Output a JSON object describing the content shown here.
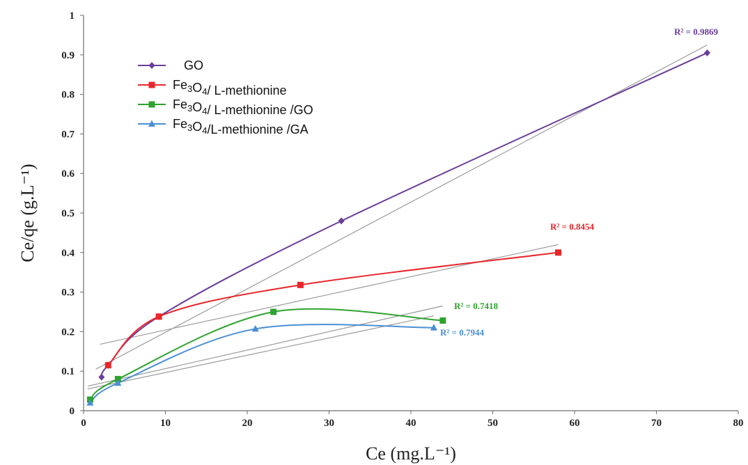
{
  "chart_data": {
    "type": "scatter",
    "xlabel": "Ce (mg.L⁻¹)",
    "ylabel": "Ce/qe (g.L⁻¹)",
    "xlim": [
      0,
      80
    ],
    "ylim": [
      0,
      1
    ],
    "x_ticks": [
      "0",
      "10",
      "20",
      "30",
      "40",
      "50",
      "60",
      "70",
      "80"
    ],
    "y_ticks": [
      "0",
      "0.1",
      "0.2",
      "0.3",
      "0.4",
      "0.5",
      "0.6",
      "0.7",
      "0.8",
      "0.9",
      "1"
    ],
    "grid": false,
    "legend_position": "top-left",
    "series": [
      {
        "name": "GO",
        "color": "#6a3d9a",
        "marker": "diamond",
        "x": [
          2.2,
          3.0,
          9.2,
          31.5,
          76.2
        ],
        "y": [
          0.085,
          0.115,
          0.238,
          0.48,
          0.905
        ],
        "r2_label": "R² = 0.9869",
        "trendline": [
          [
            1.5,
            0.105
          ],
          [
            76.2,
            0.925
          ]
        ]
      },
      {
        "name": "Fe3O4/ L-methionine",
        "color": "#e8262b",
        "marker": "square",
        "x": [
          3.0,
          9.2,
          26.5,
          58.0
        ],
        "y": [
          0.115,
          0.238,
          0.318,
          0.4
        ],
        "r2_label": "R² = 0.8454",
        "trendline": [
          [
            2.0,
            0.168
          ],
          [
            58.0,
            0.42
          ]
        ]
      },
      {
        "name": "Fe3O4/ L-methionine /GO",
        "color": "#2ea32e",
        "marker": "square",
        "x": [
          0.8,
          4.2,
          23.2,
          43.9
        ],
        "y": [
          0.028,
          0.08,
          0.25,
          0.228
        ],
        "r2_label": "R² = 0.7418",
        "trendline": [
          [
            0.5,
            0.062
          ],
          [
            43.9,
            0.265
          ]
        ]
      },
      {
        "name": "Fe3O4/L-methionine /GA",
        "color": "#4a8fd4",
        "marker": "triangle",
        "x": [
          0.8,
          4.2,
          21.0,
          42.8
        ],
        "y": [
          0.02,
          0.07,
          0.207,
          0.21
        ],
        "r2_label": "R² = 0.7944",
        "trendline": [
          [
            0.5,
            0.055
          ],
          [
            42.8,
            0.24
          ]
        ]
      }
    ]
  }
}
